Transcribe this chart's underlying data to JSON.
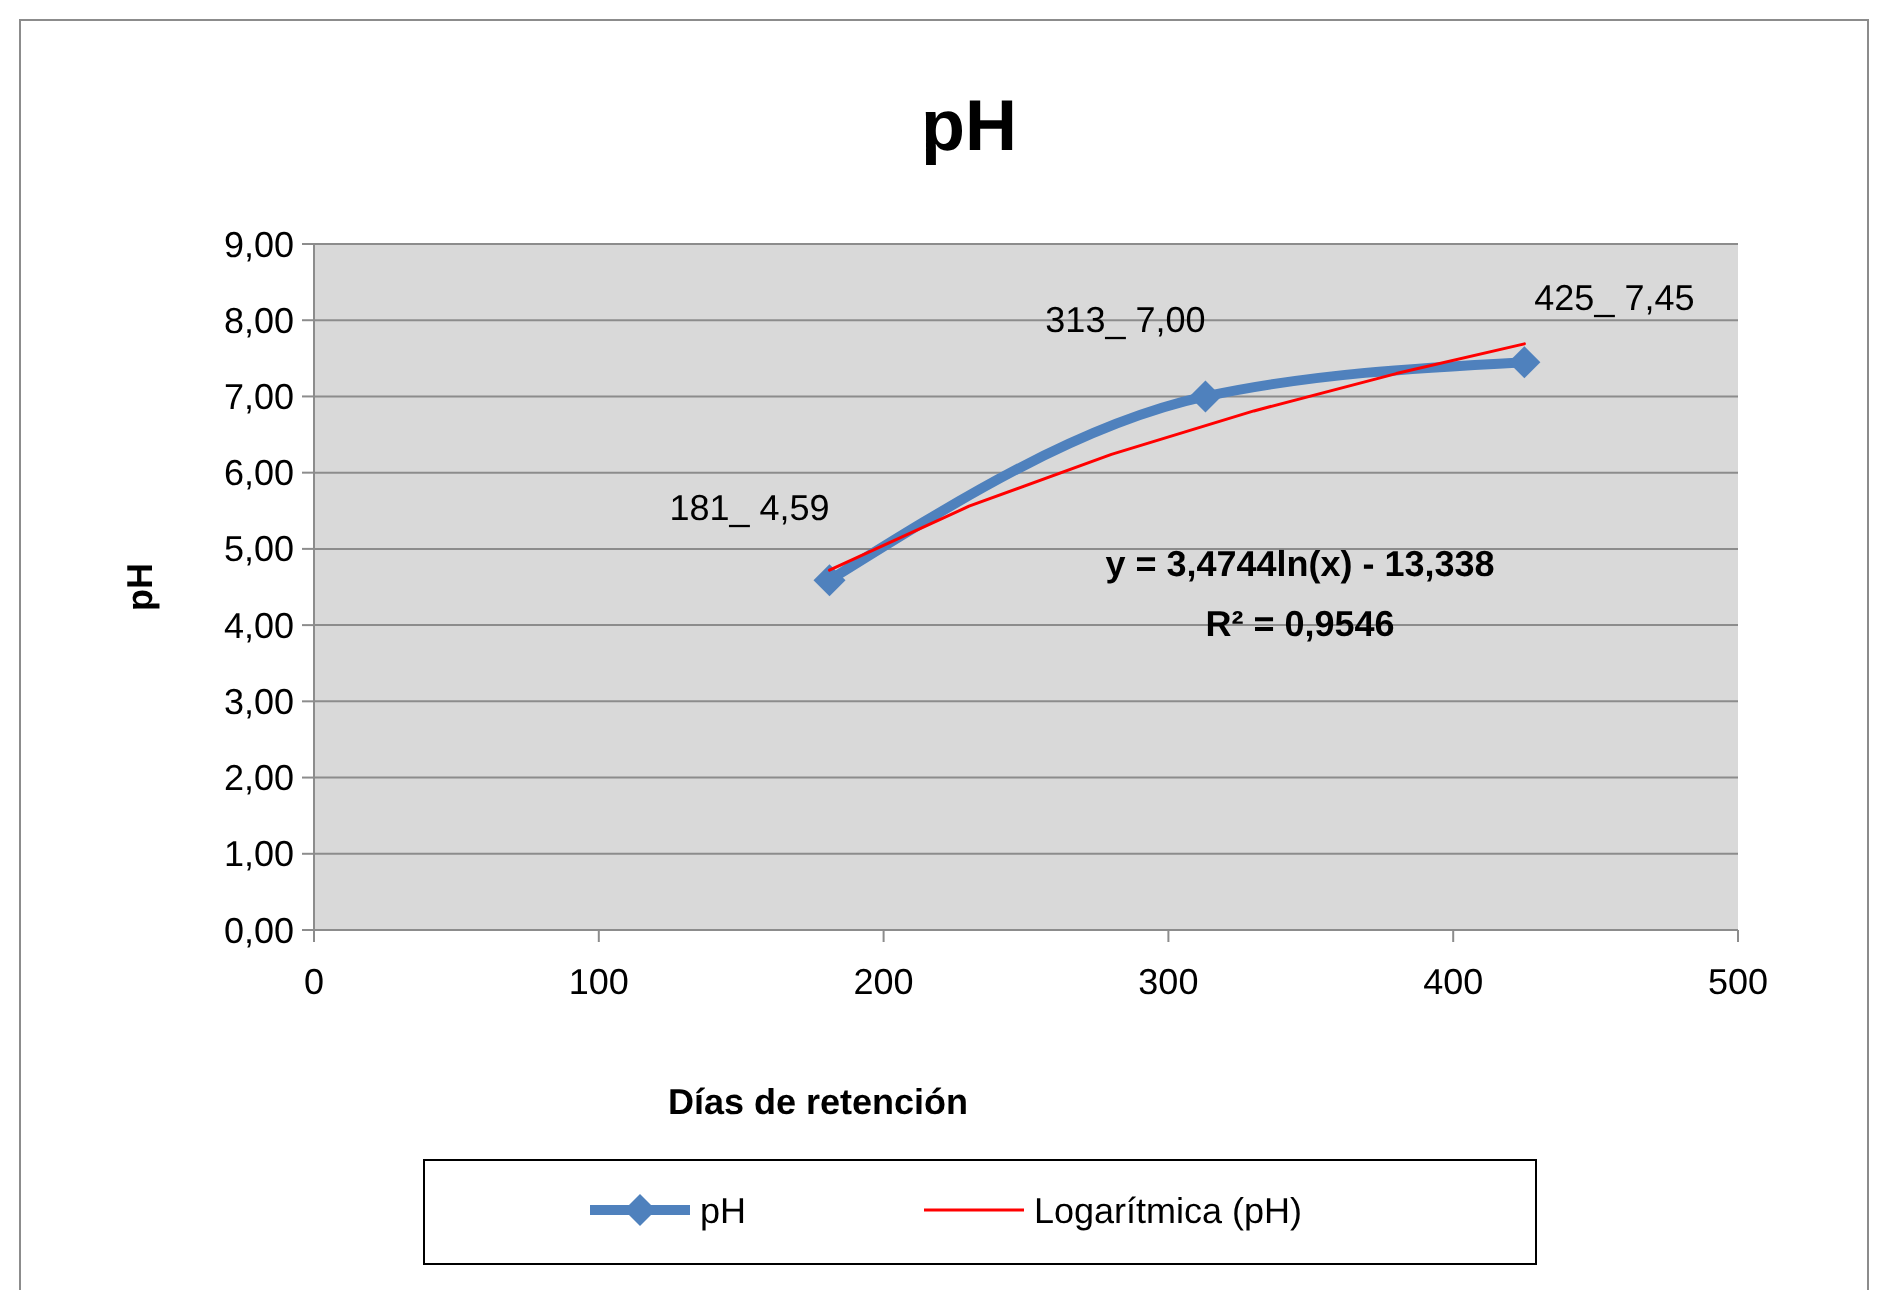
{
  "chart_data": {
    "type": "line",
    "title": "pH",
    "xlabel": "Días de retención",
    "ylabel": "pH",
    "xlim": [
      0,
      500
    ],
    "xticks": [
      0,
      100,
      200,
      300,
      400,
      500
    ],
    "ylim": [
      0,
      9
    ],
    "yticks": [
      {
        "value": 0,
        "label": "0,00"
      },
      {
        "value": 1,
        "label": "1,00"
      },
      {
        "value": 2,
        "label": "2,00"
      },
      {
        "value": 3,
        "label": "3,00"
      },
      {
        "value": 4,
        "label": "4,00"
      },
      {
        "value": 5,
        "label": "5,00"
      },
      {
        "value": 6,
        "label": "6,00"
      },
      {
        "value": 7,
        "label": "7,00"
      },
      {
        "value": 8,
        "label": "8,00"
      },
      {
        "value": 9,
        "label": "9,00"
      }
    ],
    "grid": "y",
    "legend": "bottom",
    "series": [
      {
        "name": "pH",
        "color": "#4f81bd",
        "marker": "diamond",
        "x": [
          181,
          313,
          425
        ],
        "values": [
          4.59,
          7.0,
          7.45
        ],
        "value_labels": [
          "181_ 4,59",
          "313_ 7,00",
          "425_ 7,45"
        ]
      },
      {
        "name": "Logarítmica (pH)",
        "color": "#ff0000",
        "marker": "none",
        "x": [
          181,
          230,
          280,
          330,
          380,
          425
        ],
        "values": [
          4.72,
          5.56,
          6.24,
          6.81,
          7.3,
          7.69
        ]
      }
    ],
    "annotations": [
      "y = 3,4744ln(x) - 13,338",
      "R² = 0,9546"
    ]
  }
}
